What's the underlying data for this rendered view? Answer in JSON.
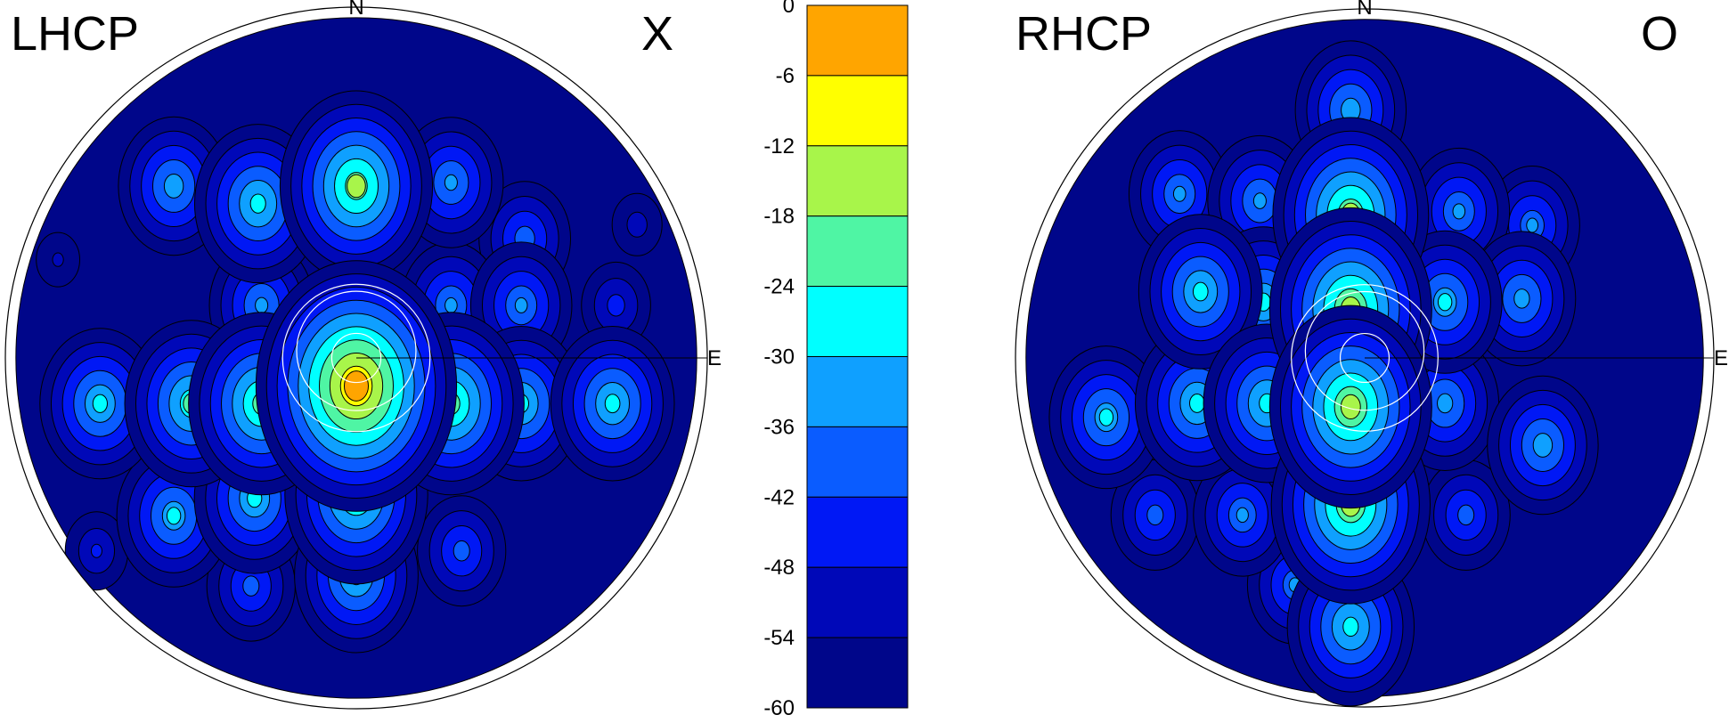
{
  "chart_data": [
    {
      "type": "heatmap",
      "title": "LHCP",
      "marker_label": "X",
      "north_label": "N",
      "east_label": "E",
      "grid": false,
      "lobes": [
        {
          "x": 0.0,
          "y": -0.08,
          "level": -3
        },
        {
          "x": 0.0,
          "y": 0.49,
          "level": -18
        },
        {
          "x": 0.0,
          "y": -0.39,
          "level": -21
        },
        {
          "x": 0.0,
          "y": -0.62,
          "level": -27
        },
        {
          "x": -0.27,
          "y": -0.13,
          "level": -20
        },
        {
          "x": 0.27,
          "y": -0.13,
          "level": -20
        },
        {
          "x": -0.47,
          "y": -0.13,
          "level": -24
        },
        {
          "x": 0.47,
          "y": -0.13,
          "level": -27
        },
        {
          "x": -0.73,
          "y": -0.13,
          "level": -28
        },
        {
          "x": 0.73,
          "y": -0.13,
          "level": -27
        },
        {
          "x": -0.28,
          "y": 0.44,
          "level": -26
        },
        {
          "x": 0.27,
          "y": 0.5,
          "level": -33
        },
        {
          "x": -0.52,
          "y": 0.49,
          "level": -31
        },
        {
          "x": 0.48,
          "y": 0.34,
          "level": -37
        },
        {
          "x": -0.27,
          "y": 0.15,
          "level": -33
        },
        {
          "x": 0.27,
          "y": 0.15,
          "level": -34
        },
        {
          "x": 0.47,
          "y": 0.15,
          "level": -34
        },
        {
          "x": 0.74,
          "y": 0.15,
          "level": -44
        },
        {
          "x": -0.85,
          "y": 0.28,
          "level": -52
        },
        {
          "x": 0.8,
          "y": 0.38,
          "level": -50
        },
        {
          "x": -0.29,
          "y": -0.4,
          "level": -28
        },
        {
          "x": -0.52,
          "y": -0.45,
          "level": -30
        },
        {
          "x": -0.3,
          "y": -0.65,
          "level": -38
        },
        {
          "x": -0.74,
          "y": -0.55,
          "level": -46
        },
        {
          "x": 0.3,
          "y": -0.55,
          "level": -38
        }
      ],
      "overlay_circles": [
        {
          "cx": 0.0,
          "cy": 0.0,
          "r": 0.21
        },
        {
          "cx": 0.0,
          "cy": 0.02,
          "r": 0.17
        },
        {
          "cx": 0.0,
          "cy": 0.0,
          "r": 0.07
        }
      ]
    },
    {
      "type": "heatmap",
      "title": "RHCP",
      "marker_label": "O",
      "north_label": "N",
      "east_label": "E",
      "grid": false,
      "lobes": [
        {
          "x": -0.04,
          "y": 0.14,
          "level": -15
        },
        {
          "x": -0.04,
          "y": -0.14,
          "level": -15
        },
        {
          "x": -0.04,
          "y": -0.42,
          "level": -16
        },
        {
          "x": -0.04,
          "y": 0.41,
          "level": -17
        },
        {
          "x": -0.04,
          "y": 0.71,
          "level": -31
        },
        {
          "x": -0.04,
          "y": -0.77,
          "level": -26
        },
        {
          "x": -0.28,
          "y": -0.13,
          "level": -26
        },
        {
          "x": -0.48,
          "y": -0.13,
          "level": -27
        },
        {
          "x": -0.74,
          "y": -0.17,
          "level": -30
        },
        {
          "x": 0.51,
          "y": -0.25,
          "level": -31
        },
        {
          "x": 0.23,
          "y": -0.13,
          "level": -32
        },
        {
          "x": -0.47,
          "y": 0.19,
          "level": -27
        },
        {
          "x": -0.29,
          "y": 0.16,
          "level": -28
        },
        {
          "x": 0.23,
          "y": 0.16,
          "level": -30
        },
        {
          "x": 0.45,
          "y": 0.17,
          "level": -32
        },
        {
          "x": -0.53,
          "y": 0.47,
          "level": -34
        },
        {
          "x": -0.3,
          "y": 0.45,
          "level": -33
        },
        {
          "x": 0.27,
          "y": 0.42,
          "level": -34
        },
        {
          "x": 0.48,
          "y": 0.38,
          "level": -36
        },
        {
          "x": -0.6,
          "y": -0.45,
          "level": -38
        },
        {
          "x": -0.35,
          "y": -0.45,
          "level": -35
        },
        {
          "x": 0.29,
          "y": -0.45,
          "level": -38
        },
        {
          "x": -0.2,
          "y": -0.65,
          "level": -36
        }
      ],
      "overlay_circles": [
        {
          "cx": 0.0,
          "cy": 0.0,
          "r": 0.21
        },
        {
          "cx": 0.0,
          "cy": 0.02,
          "r": 0.17
        },
        {
          "cx": 0.0,
          "cy": 0.0,
          "r": 0.07
        }
      ]
    }
  ],
  "colorbar": {
    "levels": [
      "0",
      "-6",
      "-12",
      "-18",
      "-24",
      "-30",
      "-36",
      "-42",
      "-48",
      "-54",
      "-60"
    ],
    "range": [
      -60,
      0
    ],
    "step": 6,
    "colors": [
      "#ffa500",
      "#ffff00",
      "#a8f54a",
      "#4ff5a4",
      "#00ffff",
      "#0fa0ff",
      "#0a5cff",
      "#0018f5",
      "#0008b8",
      "#00068a"
    ]
  },
  "outline_color": "#000000",
  "overlay_color": "#ffffff"
}
